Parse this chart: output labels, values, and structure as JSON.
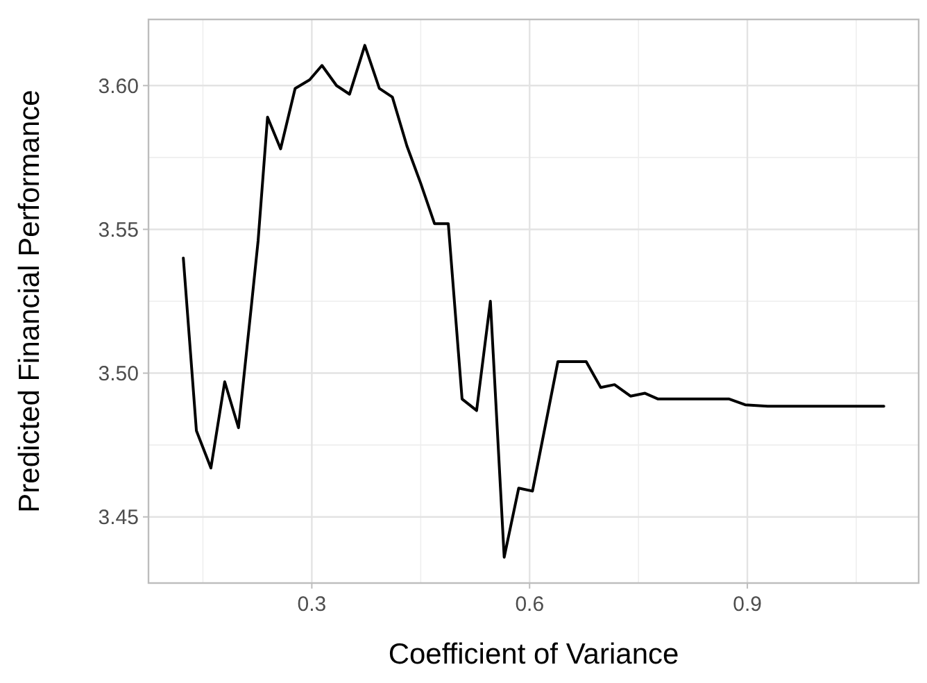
{
  "chart_data": {
    "type": "line",
    "xlabel": "Coefficient of Variance",
    "ylabel": "Predicted Financial Performance",
    "x": [
      0.123,
      0.141,
      0.161,
      0.18,
      0.199,
      0.217,
      0.226,
      0.239,
      0.257,
      0.277,
      0.297,
      0.314,
      0.334,
      0.352,
      0.373,
      0.393,
      0.411,
      0.431,
      0.45,
      0.469,
      0.488,
      0.507,
      0.527,
      0.546,
      0.565,
      0.585,
      0.604,
      0.639,
      0.678,
      0.698,
      0.717,
      0.739,
      0.759,
      0.777,
      0.816,
      0.875,
      0.897,
      0.928,
      1.088
    ],
    "series": [
      {
        "color": "#000000",
        "values": [
          3.54,
          3.48,
          3.467,
          3.497,
          3.481,
          3.524,
          3.546,
          3.589,
          3.578,
          3.599,
          3.602,
          3.607,
          3.6,
          3.597,
          3.614,
          3.599,
          3.596,
          3.579,
          3.566,
          3.552,
          3.552,
          3.491,
          3.487,
          3.525,
          3.436,
          3.46,
          3.459,
          3.504,
          3.504,
          3.495,
          3.496,
          3.492,
          3.493,
          3.491,
          3.491,
          3.491,
          3.489,
          3.4885,
          3.4885
        ]
      }
    ],
    "xlim": [
      0.075,
      1.136
    ],
    "ylim": [
      3.427,
      3.623
    ],
    "xticks": [
      0.3,
      0.6,
      0.9
    ],
    "yticks": [
      3.45,
      {
        "value": 3.5,
        "label": "3.50"
      },
      3.55,
      {
        "value": 3.6,
        "label": "3.60"
      }
    ],
    "grid": true,
    "line_style": "solid",
    "marker": "none"
  }
}
